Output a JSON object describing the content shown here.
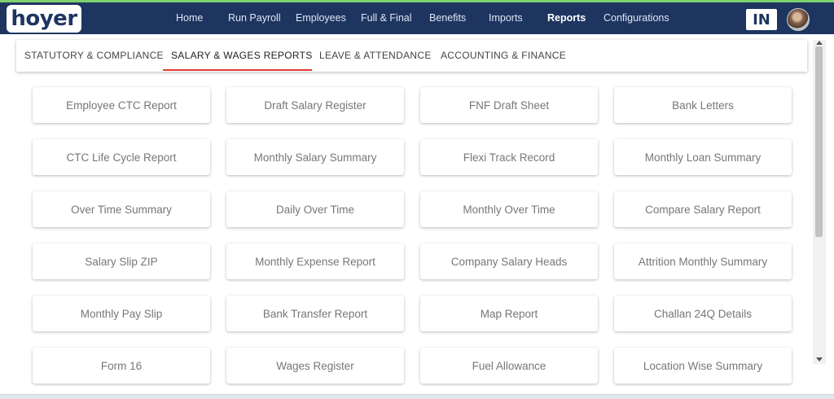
{
  "brand": {
    "logo_text": "hoyer"
  },
  "navbar": {
    "items": [
      {
        "label": "Home"
      },
      {
        "label": "Run Payroll"
      },
      {
        "label": "Employees"
      },
      {
        "label": "Full & Final"
      },
      {
        "label": "Benefits"
      },
      {
        "label": "Imports"
      },
      {
        "label": "Reports",
        "active": true
      },
      {
        "label": "Configurations"
      }
    ],
    "country_code": "IN"
  },
  "tabs": [
    {
      "label": "STATUTORY & COMPLIANCE"
    },
    {
      "label": "SALARY & WAGES REPORTS",
      "active": true
    },
    {
      "label": "LEAVE & ATTENDANCE"
    },
    {
      "label": "ACCOUNTING & FINANCE"
    }
  ],
  "reports": [
    [
      "Employee CTC Report",
      "Draft Salary Register",
      "FNF Draft Sheet",
      "Bank Letters"
    ],
    [
      "CTC Life Cycle Report",
      "Monthly Salary Summary",
      "Flexi Track Record",
      "Monthly Loan Summary"
    ],
    [
      "Over Time Summary",
      "Daily Over Time",
      "Monthly Over Time",
      "Compare Salary Report"
    ],
    [
      "Salary Slip ZIP",
      "Monthly Expense Report",
      "Company Salary Heads",
      "Attrition Monthly Summary"
    ],
    [
      "Monthly Pay Slip",
      "Bank Transfer Report",
      "Map Report",
      "Challan 24Q Details"
    ],
    [
      "Form 16",
      "Wages Register",
      "Fuel Allowance",
      "Location Wise Summary"
    ]
  ],
  "colors": {
    "navbar_bg": "#1e3560",
    "tab_indicator": "#e53935",
    "card_text": "#777777"
  }
}
